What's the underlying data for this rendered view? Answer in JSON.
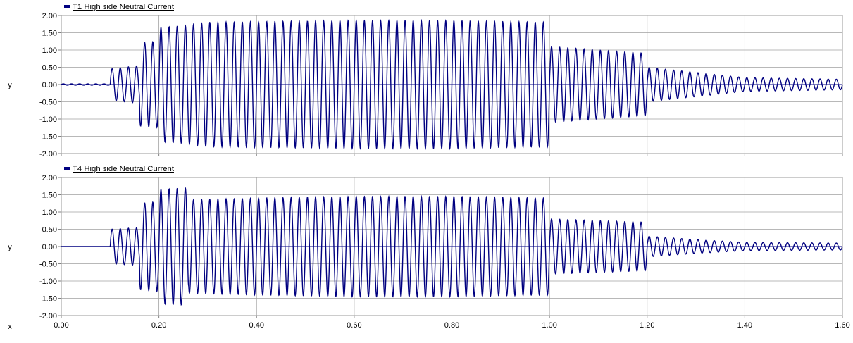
{
  "chart_data": [
    {
      "type": "line",
      "legend": "T1 High side Neutral Current",
      "legend_position": "top-left",
      "ylabel": "y",
      "xlabel": "",
      "xlim": [
        0,
        1.6
      ],
      "ylim": [
        -2.0,
        2.0
      ],
      "grid": true,
      "yticks": [
        "2.00",
        "1.50",
        "1.00",
        "0.50",
        "0.00",
        "-0.50",
        "-1.00",
        "-1.50",
        "-2.00"
      ],
      "xticks": [],
      "series": [
        {
          "name": "T1 High side Neutral Current",
          "color": "#000080",
          "frequency_hz": 60,
          "envelope": [
            {
              "x": 0.0,
              "y": 0.02
            },
            {
              "x": 0.1,
              "y": 0.02
            },
            {
              "x": 0.101,
              "y": 0.45
            },
            {
              "x": 0.16,
              "y": 0.55
            },
            {
              "x": 0.161,
              "y": 1.2
            },
            {
              "x": 0.2,
              "y": 1.25
            },
            {
              "x": 0.201,
              "y": 1.65
            },
            {
              "x": 0.25,
              "y": 1.7
            },
            {
              "x": 0.3,
              "y": 1.8
            },
            {
              "x": 0.6,
              "y": 1.85
            },
            {
              "x": 0.8,
              "y": 1.85
            },
            {
              "x": 1.0,
              "y": 1.8
            },
            {
              "x": 1.001,
              "y": 1.1
            },
            {
              "x": 1.1,
              "y": 1.0
            },
            {
              "x": 1.2,
              "y": 0.9
            },
            {
              "x": 1.201,
              "y": 0.5
            },
            {
              "x": 1.3,
              "y": 0.35
            },
            {
              "x": 1.4,
              "y": 0.2
            },
            {
              "x": 1.6,
              "y": 0.15
            }
          ]
        }
      ]
    },
    {
      "type": "line",
      "legend": "T4 High side Neutral Current",
      "legend_position": "top-left",
      "ylabel": "y",
      "xlabel": "x",
      "xlim": [
        0,
        1.6
      ],
      "ylim": [
        -2.0,
        2.0
      ],
      "grid": true,
      "yticks": [
        "2.00",
        "1.50",
        "1.00",
        "0.50",
        "0.00",
        "-0.50",
        "-1.00",
        "-1.50",
        "-2.00"
      ],
      "xticks": [
        "0.00",
        "0.20",
        "0.40",
        "0.60",
        "0.80",
        "1.00",
        "1.20",
        "1.40",
        "1.60"
      ],
      "series": [
        {
          "name": "T4 High side Neutral Current",
          "color": "#000080",
          "frequency_hz": 60,
          "envelope": [
            {
              "x": 0.0,
              "y": 0.0
            },
            {
              "x": 0.1,
              "y": 0.0
            },
            {
              "x": 0.101,
              "y": 0.5
            },
            {
              "x": 0.16,
              "y": 0.55
            },
            {
              "x": 0.161,
              "y": 1.25
            },
            {
              "x": 0.2,
              "y": 1.3
            },
            {
              "x": 0.201,
              "y": 1.65
            },
            {
              "x": 0.26,
              "y": 1.7
            },
            {
              "x": 0.261,
              "y": 1.35
            },
            {
              "x": 0.4,
              "y": 1.4
            },
            {
              "x": 0.6,
              "y": 1.45
            },
            {
              "x": 0.8,
              "y": 1.45
            },
            {
              "x": 1.0,
              "y": 1.4
            },
            {
              "x": 1.001,
              "y": 0.8
            },
            {
              "x": 1.1,
              "y": 0.75
            },
            {
              "x": 1.2,
              "y": 0.7
            },
            {
              "x": 1.201,
              "y": 0.3
            },
            {
              "x": 1.3,
              "y": 0.2
            },
            {
              "x": 1.4,
              "y": 0.12
            },
            {
              "x": 1.6,
              "y": 0.1
            }
          ]
        }
      ]
    }
  ]
}
